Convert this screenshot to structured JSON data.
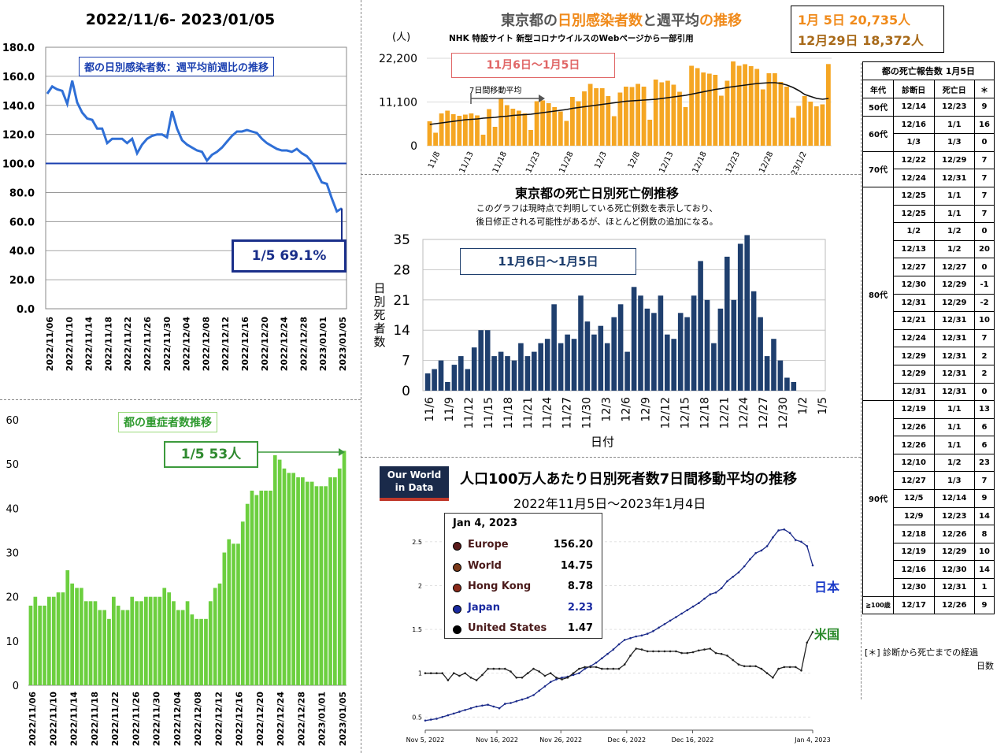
{
  "page": {
    "date_range": "2022/11/6- 2023/01/05"
  },
  "weekly_ratio": {
    "title": "都の日別感染者数：週平均前週比の推移",
    "callout": "1/5  69.1%",
    "reference_line": 100.0,
    "colors": {
      "line": "#2f6fd6",
      "ref": "#1a3fb0",
      "title_bg": "#ffffff",
      "callout_border": "#1a2f8a",
      "callout_text": "#1a2f8a"
    }
  },
  "severe": {
    "title": "都の重症者数推移",
    "callout": "1/5  53人",
    "colors": {
      "bar": "#6ccf3f",
      "title_text": "#2f9a2f",
      "callout_border": "#3c9a3c"
    }
  },
  "tokyo_cases": {
    "title_parts": [
      "東京都の",
      "日別感染者数",
      "と",
      "週平均",
      "の推移"
    ],
    "subtitle": "NHK 特設サイト 新型コロナウイルスのWebページから一部引用",
    "unit": "(人)",
    "range_label": "11月6日〜1月5日",
    "ma_label": "7日間移動平均",
    "summary": [
      "1月  5日 20,735人",
      "12月29日 18,372人"
    ],
    "colors": {
      "bar": "#f5a623",
      "line": "#111111",
      "title_orange": "#f08a1a",
      "range_border": "#e06666",
      "range_text": "#e06666",
      "summary1": "#f08a1a",
      "summary2": "#a86a1a"
    }
  },
  "deaths": {
    "title": "東京都の死亡日別死亡例推移",
    "note1": "このグラフは現時点で判明している死亡例数を表示しており、",
    "note2": "後日修正される可能性があるが、ほとんど例数の追加になる。",
    "range_label": "11月6日〜1月5日",
    "ylabel_chars": [
      "日",
      "別",
      "死",
      "者",
      "数"
    ],
    "xlabel": "日付",
    "colors": {
      "bar": "#1f3f6e",
      "plot_bg": "#ffffff",
      "grid": "#bbbbbb"
    }
  },
  "owid": {
    "logo_line1": "Our World",
    "logo_line2": "in Data",
    "title": "人口100万人あたり日別死者数7日間移動平均の推移",
    "subtitle": "2022年11月5日〜2023年1月4日",
    "legend_date": "Jan 4, 2023",
    "legend": [
      {
        "name": "Europe",
        "value": "156.20",
        "color": "#5a1a1a"
      },
      {
        "name": "World",
        "value": "14.75",
        "color": "#7a3a1a"
      },
      {
        "name": "Hong Kong",
        "value": "8.78",
        "color": "#8a2a1a"
      },
      {
        "name": "Japan",
        "value": "2.23",
        "color": "#1a2aa0"
      },
      {
        "name": "United States",
        "value": "1.47",
        "color": "#000000"
      }
    ],
    "label_japan": "日本",
    "label_us": "米国",
    "colors": {
      "japan": "#1a2a8a",
      "us": "#222222",
      "label_japan": "#1a3ac8",
      "label_us": "#2a8a2a"
    }
  },
  "death_table": {
    "title": "都の死亡報告数 1月5日",
    "headers": [
      "年代",
      "診断日",
      "死亡日",
      "＊"
    ],
    "groups": [
      {
        "age": "50代",
        "rows": [
          [
            "12/14",
            "12/23",
            "9"
          ]
        ]
      },
      {
        "age": "60代",
        "rows": [
          [
            "12/16",
            "1/1",
            "16"
          ],
          [
            "1/3",
            "1/3",
            "0"
          ]
        ]
      },
      {
        "age": "70代",
        "rows": [
          [
            "12/22",
            "12/29",
            "7"
          ],
          [
            "12/24",
            "12/31",
            "7"
          ]
        ]
      },
      {
        "age": "80代",
        "rows": [
          [
            "12/25",
            "1/1",
            "7"
          ],
          [
            "12/25",
            "1/1",
            "7"
          ],
          [
            "1/2",
            "1/2",
            "0"
          ],
          [
            "12/13",
            "1/2",
            "20"
          ],
          [
            "12/27",
            "12/27",
            "0"
          ],
          [
            "12/30",
            "12/29",
            "-1"
          ],
          [
            "12/31",
            "12/29",
            "-2"
          ],
          [
            "12/21",
            "12/31",
            "10"
          ],
          [
            "12/24",
            "12/31",
            "7"
          ],
          [
            "12/29",
            "12/31",
            "2"
          ],
          [
            "12/29",
            "12/31",
            "2"
          ],
          [
            "12/31",
            "12/31",
            "0"
          ]
        ]
      },
      {
        "age": "90代",
        "rows": [
          [
            "12/19",
            "1/1",
            "13"
          ],
          [
            "12/26",
            "1/1",
            "6"
          ],
          [
            "12/26",
            "1/1",
            "6"
          ],
          [
            "12/10",
            "1/2",
            "23"
          ],
          [
            "12/27",
            "1/3",
            "7"
          ],
          [
            "12/5",
            "12/14",
            "9"
          ],
          [
            "12/9",
            "12/23",
            "14"
          ],
          [
            "12/18",
            "12/26",
            "8"
          ],
          [
            "12/19",
            "12/29",
            "10"
          ],
          [
            "12/16",
            "12/30",
            "14"
          ],
          [
            "12/30",
            "12/31",
            "1"
          ]
        ]
      },
      {
        "age": "≧100歳",
        "rows": [
          [
            "12/17",
            "12/26",
            "9"
          ]
        ]
      }
    ],
    "footnote1": "[＊] 診断から死亡までの経過",
    "footnote2": "日数"
  },
  "chart_data": [
    {
      "type": "line",
      "title": "都の日別感染者数：週平均前週比の推移",
      "x_tick_labels": [
        "2022/11/06",
        "2022/11/10",
        "2022/11/14",
        "2022/11/18",
        "2022/11/22",
        "2022/11/26",
        "2022/11/30",
        "2022/12/04",
        "2022/12/08",
        "2022/12/12",
        "2022/12/16",
        "2022/12/20",
        "2022/12/24",
        "2022/12/28",
        "2023/01/01",
        "2023/01/05"
      ],
      "y_ticks": [
        "0.0",
        "20.0",
        "40.0",
        "60.0",
        "80.0",
        "100.0",
        "120.0",
        "140.0",
        "160.0",
        "180.0"
      ],
      "ylim": [
        0,
        180
      ],
      "values": [
        148,
        153,
        151,
        150,
        141,
        157,
        142,
        135,
        131,
        130,
        124,
        124,
        114,
        117,
        117,
        117,
        114,
        117,
        107,
        113,
        117,
        119,
        120,
        120,
        118,
        136,
        124,
        116,
        113,
        111,
        109,
        108,
        102,
        106,
        108,
        111,
        115,
        119,
        122,
        122,
        123,
        122,
        121,
        117,
        114,
        112,
        110,
        109,
        109,
        108,
        110,
        107,
        105,
        101,
        94,
        87,
        86,
        76,
        67,
        69.1
      ]
    },
    {
      "type": "bar",
      "title": "都の重症者数推移",
      "x_tick_labels": [
        "2022/11/06",
        "2022/11/10",
        "2022/11/14",
        "2022/11/18",
        "2022/11/22",
        "2022/11/26",
        "2022/11/30",
        "2022/12/04",
        "2022/12/08",
        "2022/12/12",
        "2022/12/16",
        "2022/12/20",
        "2022/12/24",
        "2022/12/28",
        "2023/01/01",
        "2023/01/05"
      ],
      "y_ticks": [
        "0",
        "10",
        "20",
        "30",
        "40",
        "50",
        "60"
      ],
      "ylim": [
        0,
        60
      ],
      "values": [
        18,
        20,
        18,
        18,
        20,
        20,
        21,
        21,
        26,
        23,
        22,
        22,
        19,
        19,
        19,
        17,
        17,
        15,
        20,
        18,
        17,
        17,
        20,
        19,
        19,
        20,
        20,
        20,
        20,
        22,
        21,
        19,
        17,
        17,
        19,
        16,
        15,
        15,
        15,
        19,
        22,
        23,
        30,
        33,
        32,
        32,
        37,
        41,
        44,
        43,
        44,
        44,
        44,
        52,
        51,
        49,
        48,
        48,
        47,
        47,
        46,
        46,
        45,
        45,
        45,
        47,
        47,
        49,
        53
      ]
    },
    {
      "type": "bar",
      "title": "東京都の日別感染者数と週平均の推移",
      "y_ticks": [
        "0",
        "11,100",
        "22,200"
      ],
      "ylim": [
        0,
        22200
      ],
      "x_tick_labels": [
        "11/8",
        "11/13",
        "11/18",
        "11/23",
        "11/28",
        "12/3",
        "12/8",
        "12/13",
        "12/18",
        "12/23",
        "12/28",
        "23/1/2"
      ],
      "series": [
        {
          "name": "日別感染者数",
          "values": [
            6200,
            3300,
            8200,
            8900,
            8000,
            7600,
            7900,
            8200,
            7700,
            2800,
            9300,
            4800,
            11900,
            10300,
            9400,
            8900,
            8200,
            4000,
            11300,
            11500,
            10800,
            9800,
            8700,
            6300,
            12400,
            11300,
            13800,
            15700,
            14600,
            14600,
            12600,
            7500,
            13500,
            15000,
            14900,
            15700,
            15000,
            6600,
            16800,
            16100,
            16500,
            15500,
            13700,
            9800,
            20300,
            19700,
            18600,
            18300,
            18000,
            12700,
            16500,
            21400,
            20300,
            20700,
            20200,
            19500,
            14300,
            18400,
            18400,
            16200,
            15000,
            7100,
            10100,
            12600,
            11200,
            10000,
            10500,
            20735
          ]
        },
        {
          "name": "7日間移動平均",
          "values": [
            5400,
            5600,
            5800,
            6000,
            6200,
            6400,
            6600,
            6700,
            6800,
            7000,
            7100,
            7200,
            7400,
            7500,
            7700,
            7800,
            7900,
            8000,
            8200,
            8400,
            8600,
            8800,
            9000,
            9200,
            9500,
            9700,
            9900,
            10100,
            10300,
            10500,
            10700,
            10900,
            11100,
            11300,
            11400,
            11500,
            11600,
            11700,
            11800,
            12000,
            12200,
            12400,
            12600,
            12800,
            13100,
            13400,
            13700,
            14000,
            14300,
            14500,
            14800,
            15000,
            15200,
            15400,
            15600,
            15800,
            15900,
            16000,
            16000,
            15800,
            15400,
            14800,
            14000,
            13000,
            12500,
            12000,
            11800,
            12000
          ]
        }
      ]
    },
    {
      "type": "bar",
      "title": "東京都の死亡日別死亡例推移",
      "y_ticks": [
        "0",
        "7",
        "14",
        "21",
        "28",
        "35"
      ],
      "ylim": [
        0,
        35
      ],
      "xlabel": "日付",
      "ylabel": "日別死者数",
      "x_tick_labels": [
        "11/6",
        "11/9",
        "11/12",
        "11/15",
        "11/18",
        "11/21",
        "11/24",
        "11/27",
        "11/30",
        "12/3",
        "12/6",
        "12/9",
        "12/12",
        "12/15",
        "12/18",
        "12/21",
        "12/24",
        "12/27",
        "12/30",
        "1/2",
        "1/5"
      ],
      "values": [
        4,
        5,
        7,
        2,
        6,
        8,
        5,
        10,
        14,
        14,
        8,
        9,
        8,
        7,
        11,
        8,
        9,
        11,
        12,
        20,
        11,
        13,
        12,
        22,
        16,
        13,
        15,
        11,
        17,
        20,
        9,
        24,
        22,
        19,
        18,
        22,
        13,
        12,
        18,
        17,
        22,
        30,
        21,
        11,
        19,
        31,
        21,
        34,
        36,
        23,
        17,
        8,
        12,
        7,
        3,
        2
      ]
    },
    {
      "type": "line",
      "title": "人口100万人あたり日別死者数7日間移動平均の推移",
      "x_tick_labels": [
        "Nov 5, 2022",
        "Nov 16, 2022",
        "Nov 26, 2022",
        "Dec 6, 2022",
        "Dec 16, 2022",
        "Jan 4, 2023"
      ],
      "y_ticks": [
        "0.5",
        "1",
        "1.5",
        "2",
        "2.5"
      ],
      "ylim": [
        0.35,
        2.75
      ],
      "series": [
        {
          "name": "Japan",
          "values": [
            0.46,
            0.47,
            0.48,
            0.5,
            0.52,
            0.54,
            0.56,
            0.58,
            0.6,
            0.62,
            0.63,
            0.64,
            0.62,
            0.6,
            0.65,
            0.66,
            0.68,
            0.7,
            0.72,
            0.75,
            0.8,
            0.85,
            0.9,
            0.93,
            0.95,
            0.96,
            0.98,
            1.0,
            1.05,
            1.08,
            1.12,
            1.17,
            1.22,
            1.27,
            1.33,
            1.38,
            1.4,
            1.42,
            1.43,
            1.45,
            1.48,
            1.52,
            1.56,
            1.6,
            1.64,
            1.68,
            1.72,
            1.76,
            1.8,
            1.85,
            1.9,
            1.92,
            1.97,
            2.05,
            2.1,
            2.15,
            2.22,
            2.3,
            2.37,
            2.4,
            2.45,
            2.55,
            2.63,
            2.64,
            2.6,
            2.52,
            2.5,
            2.45,
            2.23
          ]
        },
        {
          "name": "United States",
          "values": [
            1.0,
            1.0,
            1.0,
            1.0,
            0.92,
            1.0,
            0.97,
            1.0,
            0.95,
            0.92,
            0.98,
            1.05,
            1.05,
            1.05,
            1.05,
            1.02,
            0.95,
            0.95,
            1.0,
            1.05,
            1.02,
            0.97,
            1.0,
            0.95,
            0.93,
            0.95,
            1.0,
            1.05,
            1.07,
            1.07,
            1.07,
            1.05,
            1.05,
            1.05,
            1.05,
            1.1,
            1.2,
            1.28,
            1.27,
            1.25,
            1.25,
            1.25,
            1.25,
            1.25,
            1.25,
            1.23,
            1.23,
            1.24,
            1.26,
            1.27,
            1.28,
            1.23,
            1.22,
            1.2,
            1.15,
            1.1,
            1.08,
            1.08,
            1.08,
            1.05,
            1.0,
            0.95,
            1.05,
            1.07,
            1.07,
            1.07,
            1.03,
            1.35,
            1.47
          ]
        }
      ]
    }
  ]
}
